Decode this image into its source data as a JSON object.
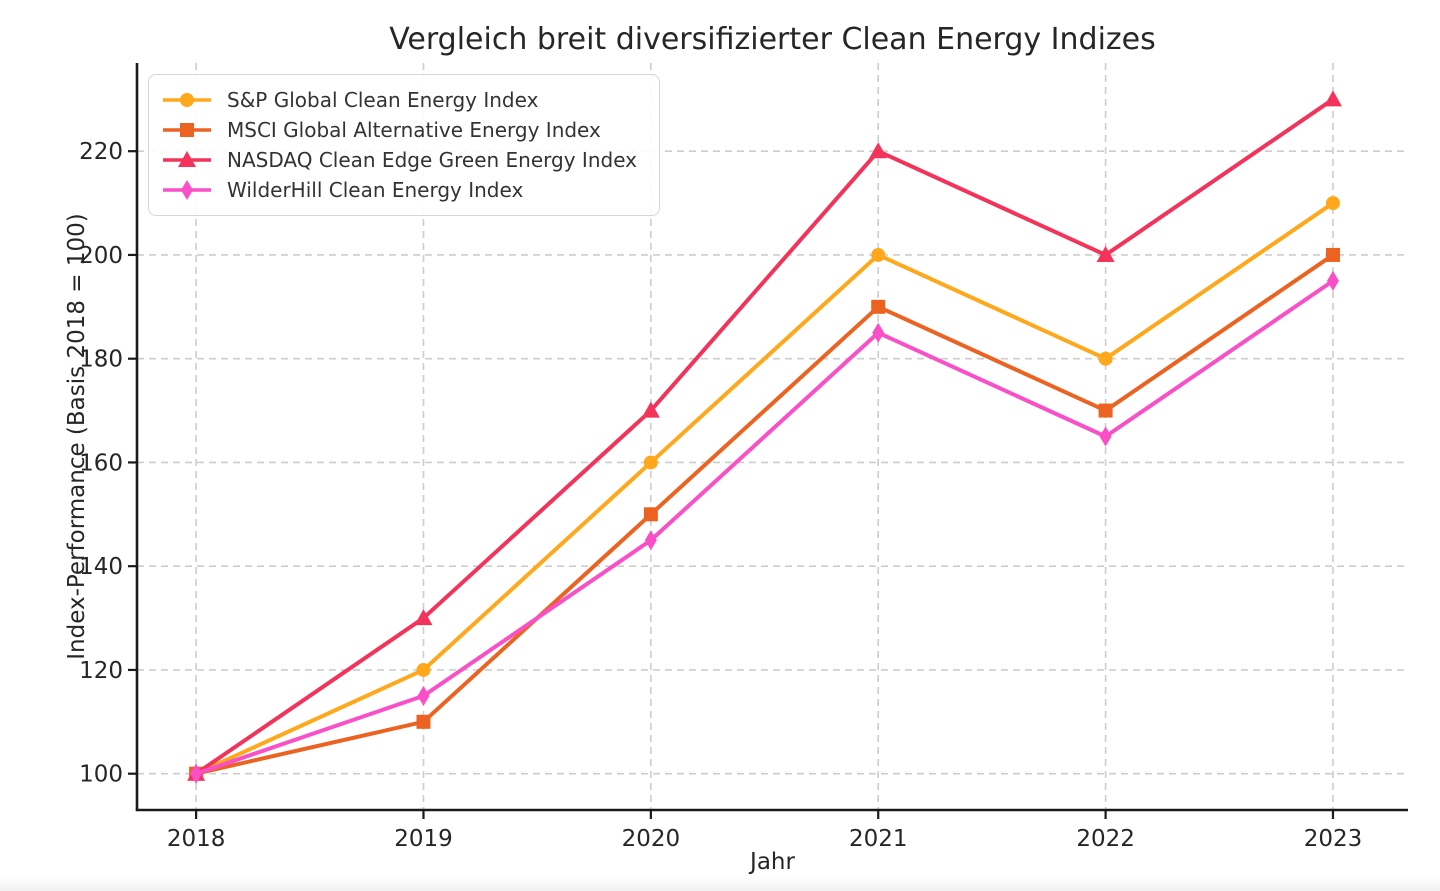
{
  "chart_data": {
    "type": "line",
    "title": "Vergleich breit diversifizierter Clean Energy Indizes",
    "xlabel": "Jahr",
    "ylabel": "Index-Performance (Basis 2018 = 100)",
    "x": [
      2018,
      2019,
      2020,
      2021,
      2022,
      2023
    ],
    "xticks": [
      2018,
      2019,
      2020,
      2021,
      2022,
      2023
    ],
    "yticks": [
      100,
      120,
      140,
      160,
      180,
      200,
      220
    ],
    "xlim": [
      2017.74,
      2023.33
    ],
    "ylim": [
      93,
      237
    ],
    "grid": true,
    "grid_color": "#cdcdcd",
    "axis_color": "#1a1a1a",
    "tick_label_color": "#262626",
    "legend_position": "upper-left",
    "series": [
      {
        "name": "S&P Global Clean Energy Index",
        "color": "#FFA81C",
        "marker": "circle",
        "values": [
          100,
          120,
          160,
          200,
          180,
          210
        ]
      },
      {
        "name": "MSCI Global Alternative Energy Index",
        "color": "#EC6321",
        "marker": "square",
        "values": [
          100,
          110,
          150,
          190,
          170,
          200
        ]
      },
      {
        "name": "NASDAQ Clean Edge Green Energy Index",
        "color": "#F3335A",
        "marker": "triangle",
        "values": [
          100,
          130,
          170,
          220,
          200,
          230
        ]
      },
      {
        "name": "WilderHill Clean Energy Index",
        "color": "#F94FC7",
        "marker": "diamond",
        "values": [
          100,
          115,
          145,
          185,
          165,
          195
        ]
      }
    ]
  }
}
